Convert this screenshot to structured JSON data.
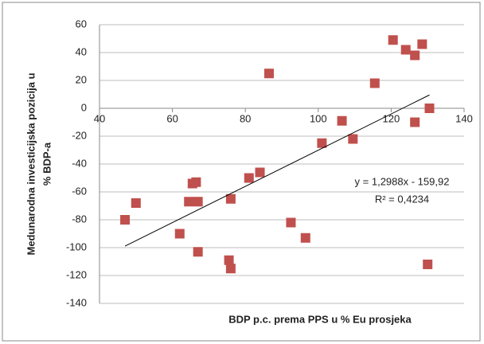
{
  "chart_data": {
    "type": "scatter",
    "y_label_lines": [
      "Medunarodna investicijska pozicija u",
      "% BDP-a"
    ],
    "x_label": "BDP p.c. prema PPS u % Eu prosjeka",
    "series": [
      {
        "color": "#c0504d",
        "x": [
          47,
          50,
          62,
          64.5,
          67,
          67,
          65.5,
          66.5,
          76,
          76,
          75.5,
          81,
          84,
          86.5,
          92.5,
          96.5,
          101,
          106.5,
          109.5,
          115.5,
          120.5,
          124,
          126.5,
          128.5,
          126.5,
          130.5,
          130
        ],
        "values": [
          -80,
          -68,
          -90,
          -67,
          -67,
          -103,
          -54,
          -53,
          -65,
          -115,
          -109,
          -50,
          -46,
          25,
          -82,
          -93,
          -25,
          -9,
          -22,
          18,
          49,
          42,
          38,
          46,
          -10,
          0,
          -112
        ]
      }
    ],
    "trendline": {
      "slope": 1.2988,
      "intercept": -159.92,
      "color": "#000000",
      "equation": "y = 1,2988x - 159,92",
      "r2_label": "R² = 0,4234"
    },
    "xlim": [
      40,
      140
    ],
    "xticks": [
      40,
      60,
      80,
      100,
      120,
      140
    ],
    "ylim": [
      -140,
      60
    ],
    "yticks": [
      -140,
      -120,
      -100,
      -80,
      -60,
      -40,
      -20,
      0,
      20,
      40,
      60
    ],
    "grid": true
  }
}
